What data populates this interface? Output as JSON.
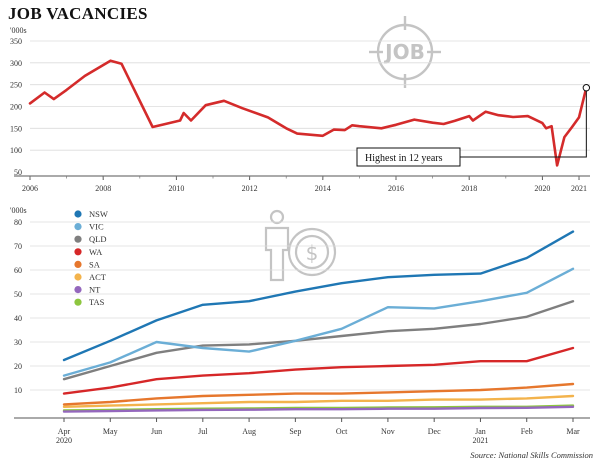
{
  "header": {
    "title": "JOB VACANCIES"
  },
  "source": "Source: National Skills Commission",
  "colors": {
    "total_line": "#d42b2b",
    "axis": "#555555",
    "icon": "#c4c4c4"
  },
  "icons": [
    "job-crosshair-icon",
    "person-dollar-icon"
  ],
  "chart_data": [
    {
      "type": "line",
      "title": "",
      "ylabel": "'000s",
      "xlabel": "",
      "xlim": [
        2006,
        2021.3
      ],
      "ylim": [
        50,
        350
      ],
      "yticks": [
        50,
        100,
        150,
        200,
        250,
        300,
        350
      ],
      "xticks": [
        2006,
        2008,
        2010,
        2012,
        2014,
        2016,
        2018,
        2020,
        2021
      ],
      "grid": true,
      "annotation": {
        "text": "Highest in 12 years",
        "x": 2021.2,
        "y": 243
      },
      "series": [
        {
          "color": "#d42b2b",
          "points": [
            [
              2006.0,
              207
            ],
            [
              2006.4,
              232
            ],
            [
              2006.65,
              217
            ],
            [
              2007.0,
              238
            ],
            [
              2007.5,
              270
            ],
            [
              2008.2,
              305
            ],
            [
              2008.5,
              298
            ],
            [
              2009.35,
              153
            ],
            [
              2009.7,
              160
            ],
            [
              2010.1,
              168
            ],
            [
              2010.2,
              185
            ],
            [
              2010.4,
              168
            ],
            [
              2010.8,
              203
            ],
            [
              2011.3,
              213
            ],
            [
              2011.8,
              196
            ],
            [
              2012.5,
              175
            ],
            [
              2013.0,
              150
            ],
            [
              2013.3,
              138
            ],
            [
              2014.0,
              133
            ],
            [
              2014.3,
              147
            ],
            [
              2014.6,
              146
            ],
            [
              2014.8,
              157
            ],
            [
              2015.0,
              155
            ],
            [
              2015.6,
              150
            ],
            [
              2016.0,
              158
            ],
            [
              2016.5,
              170
            ],
            [
              2017.0,
              163
            ],
            [
              2017.3,
              160
            ],
            [
              2017.6,
              167
            ],
            [
              2018.0,
              178
            ],
            [
              2018.1,
              168
            ],
            [
              2018.45,
              188
            ],
            [
              2018.8,
              180
            ],
            [
              2019.2,
              176
            ],
            [
              2019.6,
              178
            ],
            [
              2020.0,
              162
            ],
            [
              2020.1,
              150
            ],
            [
              2020.25,
              155
            ],
            [
              2020.4,
              65
            ],
            [
              2020.6,
              130
            ],
            [
              2020.8,
              152
            ],
            [
              2021.0,
              175
            ],
            [
              2021.2,
              243
            ]
          ]
        }
      ]
    },
    {
      "type": "line",
      "title": "",
      "ylabel": "'000s",
      "xlabel": "",
      "ylim": [
        0,
        80
      ],
      "yticks": [
        10,
        20,
        30,
        40,
        50,
        60,
        70,
        80
      ],
      "categories": [
        "Apr",
        "May",
        "Jun",
        "Jul",
        "Aug",
        "Sep",
        "Oct",
        "Nov",
        "Dec",
        "Jan",
        "Feb",
        "Mar"
      ],
      "year_labels": {
        "0": "2020",
        "9": "2021"
      },
      "grid": true,
      "legend": "top-left",
      "series": [
        {
          "name": "NSW",
          "color": "#1f77b4",
          "values": [
            22.5,
            30.5,
            39.0,
            45.5,
            47.0,
            51.0,
            54.5,
            57.0,
            58.0,
            58.5,
            65.0,
            76.0
          ]
        },
        {
          "name": "VIC",
          "color": "#6baed6",
          "values": [
            16.0,
            21.5,
            30.0,
            27.5,
            26.0,
            30.5,
            35.5,
            44.5,
            44.0,
            47.0,
            50.5,
            60.5
          ]
        },
        {
          "name": "QLD",
          "color": "#7f7f7f",
          "values": [
            14.5,
            20.0,
            25.5,
            28.5,
            29.0,
            30.5,
            32.5,
            34.5,
            35.5,
            37.5,
            40.5,
            47.0
          ]
        },
        {
          "name": "WA",
          "color": "#d62728",
          "values": [
            8.5,
            11.0,
            14.5,
            16.0,
            17.0,
            18.5,
            19.5,
            20.0,
            20.5,
            22.0,
            22.0,
            27.5
          ]
        },
        {
          "name": "SA",
          "color": "#e6772d",
          "values": [
            4.0,
            5.0,
            6.5,
            7.5,
            8.0,
            8.5,
            8.5,
            9.0,
            9.5,
            10.0,
            11.0,
            12.5
          ]
        },
        {
          "name": "ACT",
          "color": "#f3b34c",
          "values": [
            3.0,
            3.5,
            4.0,
            4.5,
            5.0,
            5.0,
            5.5,
            5.5,
            6.0,
            6.0,
            6.5,
            7.5
          ]
        },
        {
          "name": "NT",
          "color": "#9467bd",
          "values": [
            1.0,
            1.2,
            1.5,
            1.7,
            1.8,
            2.0,
            2.0,
            2.2,
            2.2,
            2.5,
            2.6,
            3.0
          ]
        },
        {
          "name": "TAS",
          "color": "#8dc63f",
          "values": [
            1.5,
            1.7,
            2.0,
            2.2,
            2.3,
            2.5,
            2.5,
            2.7,
            2.8,
            3.0,
            3.0,
            3.5
          ]
        }
      ]
    }
  ]
}
